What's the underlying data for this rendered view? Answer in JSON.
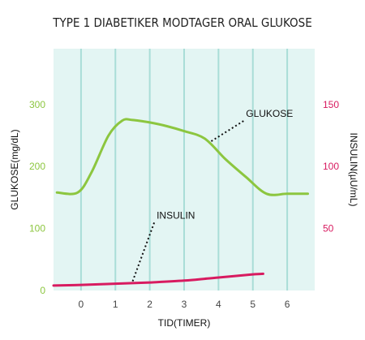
{
  "chart_data": {
    "type": "line",
    "title": "TYPE 1 DIABETIKER MODTAGER ORAL GLUKOSE",
    "xlabel": "TID(TIMER)",
    "ylabel_left": "GLUKOSE(mg/dL)",
    "ylabel_right": "INSULIN(µU/mL)",
    "x_ticks": [
      "0",
      "1",
      "2",
      "3",
      "4",
      "5",
      "6"
    ],
    "y_left_ticks": [
      "0",
      "100",
      "200",
      "300"
    ],
    "y_right_ticks": [
      "50",
      "100",
      "150"
    ],
    "xlim": [
      -0.8,
      6.8
    ],
    "ylim_left": [
      0,
      390
    ],
    "ylim_right": [
      0,
      195
    ],
    "grid": "vertical",
    "colors": {
      "plot_background": "#e3f5f3",
      "grid": "#a9ddd7",
      "glucose": "#8cc63f",
      "insulin": "#d81b60"
    },
    "series": [
      {
        "name": "GLUKOSE",
        "axis": "left",
        "x": [
          -0.7,
          -0.1,
          0.3,
          0.8,
          1.2,
          1.5,
          2.0,
          2.5,
          3.0,
          3.6,
          4.2,
          4.8,
          5.4,
          6.0,
          6.6
        ],
        "y": [
          158,
          158,
          190,
          250,
          274,
          275,
          271,
          265,
          257,
          245,
          212,
          183,
          156,
          156,
          156
        ]
      },
      {
        "name": "INSULIN",
        "axis": "right",
        "x": [
          -0.8,
          0.0,
          1.0,
          2.0,
          3.0,
          4.0,
          5.0,
          5.3
        ],
        "y": [
          4,
          4.5,
          5.5,
          6.5,
          8,
          10.5,
          13,
          13.5
        ]
      }
    ],
    "annotations": [
      {
        "text": "GLUKOSE",
        "series": "GLUKOSE",
        "x": 3.75,
        "label_x": 4.8,
        "label_y": 280
      },
      {
        "text": "INSULIN",
        "series": "INSULIN",
        "x": 1.5,
        "label_x": 2.2,
        "label_y": 58
      }
    ]
  }
}
